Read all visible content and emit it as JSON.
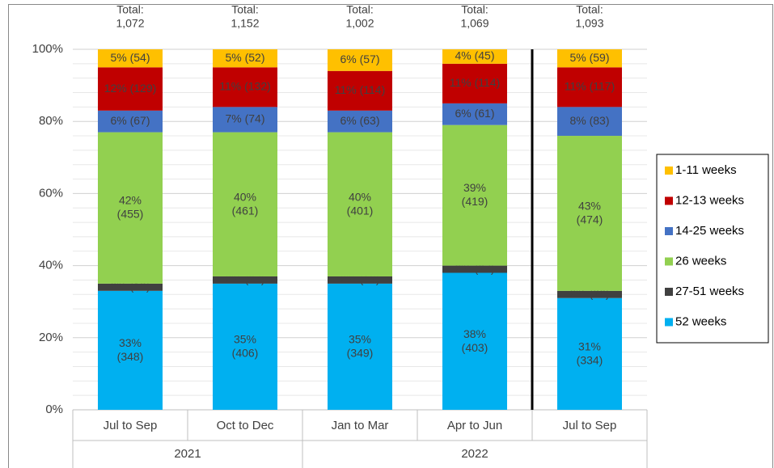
{
  "chart_data": {
    "type": "stacked_bar_100",
    "categories": [
      "Jul to Sep",
      "Oct to Dec",
      "Jan to Mar",
      "Apr to Jun",
      "Jul to Sep"
    ],
    "groups": [
      {
        "label": "2021",
        "count": 2
      },
      {
        "label": "2022",
        "count": 3
      }
    ],
    "total_prefix": "Total:",
    "totals": [
      {
        "value": 1072,
        "label": "1,072"
      },
      {
        "value": 1152,
        "label": "1,152"
      },
      {
        "value": 1002,
        "label": "1,002"
      },
      {
        "value": 1069,
        "label": "1,069"
      },
      {
        "value": 1093,
        "label": "1,093"
      }
    ],
    "separator_after_category": 3,
    "series": [
      {
        "name": "1-11 weeks",
        "color": "#ffc000",
        "label_color": "#404040",
        "values": [
          5,
          5,
          6,
          4,
          5
        ],
        "value_labels": [
          "5% (54)",
          "5% (52)",
          "6% (57)",
          "4% (45)",
          "5% (59)"
        ]
      },
      {
        "name": "12-13 weeks",
        "color": "#c00000",
        "label_color": "#ffffff",
        "values": [
          12,
          11,
          11,
          11,
          11
        ],
        "value_labels": [
          "12% (129)",
          "11% (132)",
          "11% (114)",
          "11% (114)",
          "11% (117)"
        ]
      },
      {
        "name": "14-25 weeks",
        "color": "#4472c4",
        "label_color": "#ffffff",
        "values": [
          6,
          7,
          6,
          6,
          8
        ],
        "value_labels": [
          "6% (67)",
          "7% (74)",
          "6% (63)",
          "6% (61)",
          "8% (83)"
        ]
      },
      {
        "name": "26 weeks",
        "color": "#92d050",
        "label_color": "#404040",
        "values": [
          42,
          40,
          40,
          39,
          43
        ],
        "value_labels": [
          "42% (455)",
          "40% (461)",
          "40% (401)",
          "39% (419)",
          "43% (474)"
        ]
      },
      {
        "name": "27-51 weeks",
        "color": "#404040",
        "label_color": "#ffffff",
        "values": [
          2,
          2,
          2,
          2,
          2
        ],
        "value_labels": [
          "2% (19)",
          "2% (27)",
          "2% (18)",
          "2% (27)",
          "2% (26)"
        ]
      },
      {
        "name": "52 weeks",
        "color": "#00b0f0",
        "label_color": "#404040",
        "values": [
          33,
          35,
          35,
          38,
          31
        ],
        "value_labels": [
          "33% (348)",
          "35% (406)",
          "35% (349)",
          "38% (403)",
          "31% (334)"
        ]
      }
    ],
    "ylim": [
      0,
      100
    ],
    "yticks": [
      {
        "value": 0,
        "label": "0%"
      },
      {
        "value": 20,
        "label": "20%"
      },
      {
        "value": 40,
        "label": "40%"
      },
      {
        "value": 60,
        "label": "60%"
      },
      {
        "value": 80,
        "label": "80%"
      },
      {
        "value": 100,
        "label": "100%"
      }
    ],
    "minor_yticks": [
      4,
      8,
      12,
      16,
      24,
      28,
      32,
      36,
      44,
      48,
      52,
      56,
      64,
      68,
      72,
      76,
      84,
      88,
      92,
      96
    ],
    "grid": true,
    "legend": "right"
  }
}
